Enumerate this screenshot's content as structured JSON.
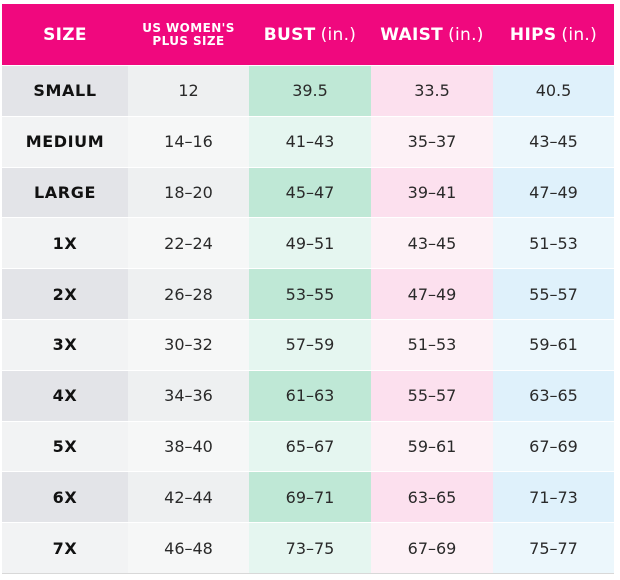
{
  "headers": {
    "size": "SIZE",
    "us_line1": "US WOMEN'S",
    "us_line2": "PLUS SIZE",
    "bust": "BUST",
    "waist": "WAIST",
    "hips": "HIPS",
    "unit": "(in.)"
  },
  "colors": {
    "header_bg": "#f0087e",
    "bust_tint": "#bfe8d6",
    "waist_tint": "#fce0ee",
    "hips_tint": "#dff1fb"
  },
  "rows": [
    {
      "size": "SMALL",
      "us": "12",
      "bust": "39.5",
      "waist": "33.5",
      "hips": "40.5"
    },
    {
      "size": "MEDIUM",
      "us": "14–16",
      "bust": "41–43",
      "waist": "35–37",
      "hips": "43–45"
    },
    {
      "size": "LARGE",
      "us": "18–20",
      "bust": "45–47",
      "waist": "39–41",
      "hips": "47–49"
    },
    {
      "size": "1X",
      "us": "22–24",
      "bust": "49–51",
      "waist": "43–45",
      "hips": "51–53"
    },
    {
      "size": "2X",
      "us": "26–28",
      "bust": "53–55",
      "waist": "47–49",
      "hips": "55–57"
    },
    {
      "size": "3X",
      "us": "30–32",
      "bust": "57–59",
      "waist": "51–53",
      "hips": "59–61"
    },
    {
      "size": "4X",
      "us": "34–36",
      "bust": "61–63",
      "waist": "55–57",
      "hips": "63–65"
    },
    {
      "size": "5X",
      "us": "38–40",
      "bust": "65–67",
      "waist": "59–61",
      "hips": "67–69"
    },
    {
      "size": "6X",
      "us": "42–44",
      "bust": "69–71",
      "waist": "63–65",
      "hips": "71–73"
    },
    {
      "size": "7X",
      "us": "46–48",
      "bust": "73–75",
      "waist": "67–69",
      "hips": "75–77"
    }
  ]
}
